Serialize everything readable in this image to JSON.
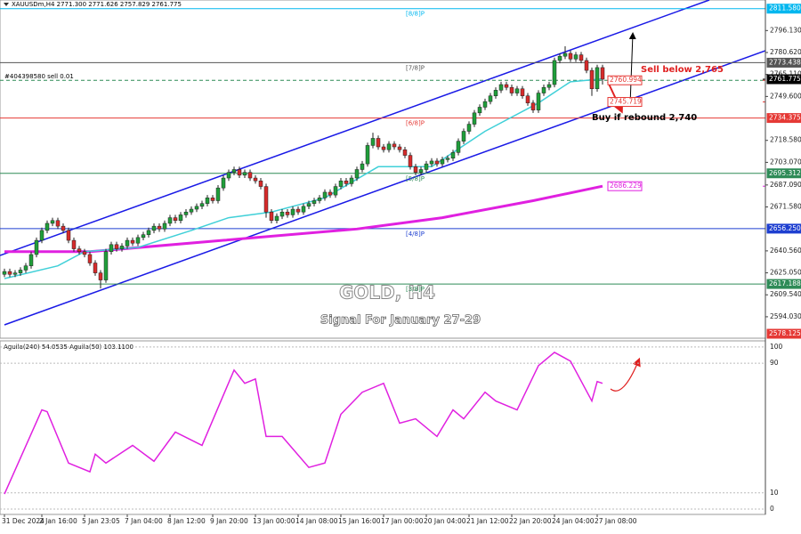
{
  "chart_data": {
    "type": "candlestick",
    "header": "XAUUSDm,H4  2771.300 2771.626 2757.829 2761.775",
    "order_label": "#404398580 sell 0.01",
    "order_price": 2760.994,
    "title": "GOLD, H4",
    "subtitle": "Signal For January 27-29",
    "annotations": [
      "Sell below 2,765",
      "Buy if rebound 2,740"
    ],
    "bull_color": "#1f9e3a",
    "bear_color": "#d62b2b",
    "ylim": [
      2578.9,
      2817.7
    ],
    "yticks": [
      {
        "value": 2796.13,
        "label": "2796.130"
      },
      {
        "value": 2780.62,
        "label": "2780.620"
      },
      {
        "value": 2765.11,
        "label": "2765.110"
      },
      {
        "value": 2749.6,
        "label": "2749.600"
      },
      {
        "value": 2718.58,
        "label": "2718.580"
      },
      {
        "value": 2703.07,
        "label": "2703.070"
      },
      {
        "value": 2687.09,
        "label": "2687.090"
      },
      {
        "value": 2671.58,
        "label": "2671.580"
      },
      {
        "value": 2640.56,
        "label": "2640.560"
      },
      {
        "value": 2625.05,
        "label": "2625.050"
      },
      {
        "value": 2609.54,
        "label": "2609.540"
      },
      {
        "value": 2594.03,
        "label": "2594.030"
      }
    ],
    "xticks": [
      {
        "value": 0,
        "label": "31 Dec 2024"
      },
      {
        "value": 7,
        "label": "2 Jan 16:00"
      },
      {
        "value": 15,
        "label": "5 Jan 23:05"
      },
      {
        "value": 23,
        "label": "7 Jan 04:00"
      },
      {
        "value": 31,
        "label": "8 Jan 12:00"
      },
      {
        "value": 39,
        "label": "9 Jan 20:00"
      },
      {
        "value": 47,
        "label": "13 Jan 00:00"
      },
      {
        "value": 55,
        "label": "14 Jan 08:00"
      },
      {
        "value": 63,
        "label": "15 Jan 16:00"
      },
      {
        "value": 71,
        "label": "17 Jan 00:00"
      },
      {
        "value": 79,
        "label": "20 Jan 04:00"
      },
      {
        "value": 87,
        "label": "21 Jan 12:00"
      },
      {
        "value": 95,
        "label": "22 Jan 20:00"
      },
      {
        "value": 103,
        "label": "24 Jan 04:00"
      },
      {
        "value": 111,
        "label": "27 Jan 08:00"
      }
    ],
    "levels": [
      {
        "name": "[8/8]P",
        "value": 2811.58,
        "label": "2811.580",
        "color": "#00b7ef"
      },
      {
        "name": "[7/8]P",
        "value": 2773.438,
        "label": "2773.438",
        "color": "#555555"
      },
      {
        "name": "[6/8]P",
        "value": 2734.375,
        "label": "2734.375",
        "color": "#e53935"
      },
      {
        "name": "[5/8]P",
        "value": 2695.312,
        "label": "2695.312",
        "color": "#2e8b57"
      },
      {
        "name": "[4/8]P",
        "value": 2656.25,
        "label": "2656.250",
        "color": "#1e3fd0"
      },
      {
        "name": "[3/8]P",
        "value": 2617.188,
        "label": "2617.188",
        "color": "#2e8b57"
      },
      {
        "value": 2578.125,
        "label": "2578.125",
        "color": "#e53935"
      }
    ],
    "price_tags": [
      {
        "value": 2761.775,
        "label": "2761.775",
        "color": "#000000",
        "placement": "axis"
      },
      {
        "value": 2760.994,
        "label": "2760.994",
        "color": "#e53935",
        "placement": "inline"
      },
      {
        "value": 2745.719,
        "label": "2745.719",
        "color": "#e53935",
        "placement": "inline"
      },
      {
        "value": 2686.229,
        "label": "2686.229",
        "color": "#e020e0",
        "placement": "inline"
      }
    ],
    "ma_fast": {
      "color": "#40d0d8",
      "x": [
        0,
        10,
        15,
        25,
        35,
        42,
        50,
        60,
        70,
        80,
        90,
        100,
        106,
        112
      ],
      "values": [
        2621,
        2630,
        2640,
        2643,
        2655,
        2664,
        2668,
        2678,
        2700,
        2700,
        2725,
        2745,
        2760,
        2762
      ]
    },
    "ma_slow": {
      "color": "#e020e0",
      "x": [
        0,
        16,
        41,
        66,
        82,
        99,
        112
      ],
      "values": [
        2640,
        2640,
        2648,
        2656,
        2664,
        2676,
        2686.229
      ]
    },
    "candles": [
      [
        2624,
        2628,
        2622,
        2626
      ],
      [
        2626,
        2628,
        2622,
        2624
      ],
      [
        2624,
        2627,
        2622,
        2625
      ],
      [
        2625,
        2629,
        2623,
        2627
      ],
      [
        2627,
        2632,
        2625,
        2630
      ],
      [
        2630,
        2640,
        2628,
        2638
      ],
      [
        2638,
        2650,
        2636,
        2648
      ],
      [
        2648,
        2657,
        2646,
        2655
      ],
      [
        2655,
        2662,
        2653,
        2660
      ],
      [
        2660,
        2664,
        2658,
        2662
      ],
      [
        2662,
        2664,
        2656,
        2658
      ],
      [
        2658,
        2660,
        2653,
        2655
      ],
      [
        2655,
        2657,
        2646,
        2648
      ],
      [
        2648,
        2650,
        2640,
        2642
      ],
      [
        2642,
        2644,
        2638,
        2640
      ],
      [
        2640,
        2642,
        2636,
        2638
      ],
      [
        2638,
        2640,
        2630,
        2632
      ],
      [
        2632,
        2634,
        2623,
        2625
      ],
      [
        2625,
        2627,
        2614,
        2620
      ],
      [
        2620,
        2642,
        2618,
        2640
      ],
      [
        2640,
        2647,
        2638,
        2645
      ],
      [
        2645,
        2647,
        2640,
        2642
      ],
      [
        2642,
        2646,
        2640,
        2644
      ],
      [
        2644,
        2650,
        2642,
        2648
      ],
      [
        2648,
        2650,
        2644,
        2646
      ],
      [
        2646,
        2652,
        2644,
        2650
      ],
      [
        2650,
        2654,
        2648,
        2652
      ],
      [
        2652,
        2657,
        2650,
        2655
      ],
      [
        2655,
        2660,
        2653,
        2658
      ],
      [
        2658,
        2660,
        2654,
        2656
      ],
      [
        2656,
        2662,
        2654,
        2660
      ],
      [
        2660,
        2666,
        2658,
        2664
      ],
      [
        2664,
        2666,
        2660,
        2662
      ],
      [
        2662,
        2668,
        2660,
        2666
      ],
      [
        2666,
        2670,
        2664,
        2668
      ],
      [
        2668,
        2672,
        2666,
        2670
      ],
      [
        2670,
        2674,
        2668,
        2672
      ],
      [
        2672,
        2676,
        2670,
        2674
      ],
      [
        2674,
        2680,
        2672,
        2678
      ],
      [
        2678,
        2680,
        2674,
        2676
      ],
      [
        2676,
        2687,
        2674,
        2685
      ],
      [
        2685,
        2694,
        2683,
        2692
      ],
      [
        2692,
        2698,
        2690,
        2696
      ],
      [
        2696,
        2700,
        2694,
        2698
      ],
      [
        2698,
        2700,
        2692,
        2694
      ],
      [
        2694,
        2698,
        2692,
        2696
      ],
      [
        2696,
        2698,
        2690,
        2692
      ],
      [
        2692,
        2694,
        2688,
        2690
      ],
      [
        2690,
        2692,
        2684,
        2686
      ],
      [
        2686,
        2688,
        2664,
        2668
      ],
      [
        2668,
        2670,
        2660,
        2662
      ],
      [
        2662,
        2667,
        2660,
        2665
      ],
      [
        2665,
        2670,
        2663,
        2668
      ],
      [
        2668,
        2670,
        2664,
        2666
      ],
      [
        2666,
        2672,
        2664,
        2670
      ],
      [
        2670,
        2672,
        2666,
        2668
      ],
      [
        2668,
        2674,
        2666,
        2672
      ],
      [
        2672,
        2676,
        2670,
        2674
      ],
      [
        2674,
        2678,
        2672,
        2676
      ],
      [
        2676,
        2680,
        2674,
        2678
      ],
      [
        2678,
        2684,
        2676,
        2682
      ],
      [
        2682,
        2684,
        2678,
        2680
      ],
      [
        2680,
        2688,
        2678,
        2686
      ],
      [
        2686,
        2692,
        2684,
        2690
      ],
      [
        2690,
        2692,
        2686,
        2688
      ],
      [
        2688,
        2694,
        2686,
        2692
      ],
      [
        2692,
        2700,
        2690,
        2698
      ],
      [
        2698,
        2704,
        2696,
        2702
      ],
      [
        2702,
        2717,
        2700,
        2715
      ],
      [
        2715,
        2724,
        2713,
        2720
      ],
      [
        2720,
        2722,
        2712,
        2714
      ],
      [
        2714,
        2716,
        2710,
        2712
      ],
      [
        2712,
        2718,
        2710,
        2716
      ],
      [
        2716,
        2718,
        2712,
        2714
      ],
      [
        2714,
        2716,
        2710,
        2712
      ],
      [
        2712,
        2714,
        2706,
        2708
      ],
      [
        2708,
        2710,
        2698,
        2700
      ],
      [
        2700,
        2702,
        2694,
        2696
      ],
      [
        2696,
        2700,
        2694,
        2698
      ],
      [
        2698,
        2704,
        2696,
        2702
      ],
      [
        2702,
        2706,
        2700,
        2704
      ],
      [
        2704,
        2706,
        2700,
        2702
      ],
      [
        2702,
        2707,
        2700,
        2705
      ],
      [
        2705,
        2708,
        2703,
        2706
      ],
      [
        2706,
        2712,
        2704,
        2710
      ],
      [
        2710,
        2720,
        2708,
        2718
      ],
      [
        2718,
        2727,
        2716,
        2725
      ],
      [
        2725,
        2732,
        2723,
        2730
      ],
      [
        2730,
        2740,
        2728,
        2738
      ],
      [
        2738,
        2744,
        2736,
        2742
      ],
      [
        2742,
        2748,
        2740,
        2746
      ],
      [
        2746,
        2752,
        2744,
        2750
      ],
      [
        2750,
        2756,
        2748,
        2754
      ],
      [
        2754,
        2760,
        2752,
        2758
      ],
      [
        2758,
        2760,
        2754,
        2756
      ],
      [
        2756,
        2758,
        2750,
        2752
      ],
      [
        2752,
        2757,
        2750,
        2755
      ],
      [
        2755,
        2757,
        2748,
        2750
      ],
      [
        2750,
        2752,
        2743,
        2745
      ],
      [
        2745,
        2747,
        2738,
        2740
      ],
      [
        2740,
        2754,
        2738,
        2752
      ],
      [
        2752,
        2758,
        2750,
        2756
      ],
      [
        2756,
        2760,
        2754,
        2758
      ],
      [
        2758,
        2777,
        2756,
        2775
      ],
      [
        2775,
        2780,
        2773,
        2778
      ],
      [
        2778,
        2785,
        2776,
        2780
      ],
      [
        2780,
        2782,
        2774,
        2776
      ],
      [
        2776,
        2781,
        2774,
        2779
      ],
      [
        2779,
        2781,
        2773,
        2775
      ],
      [
        2775,
        2777,
        2766,
        2768
      ],
      [
        2768,
        2770,
        2750,
        2755
      ],
      [
        2755,
        2772,
        2753,
        2770
      ],
      [
        2770,
        2772,
        2758,
        2761.775
      ]
    ],
    "indicator": {
      "title": "Aguila(240) 54.0535  Aguila(50) 103.1100",
      "color": "#e020e0",
      "ylim": [
        -3.3,
        103.8
      ],
      "yticks": [
        0,
        10,
        90,
        100
      ],
      "x": [
        0,
        7,
        8,
        12,
        16,
        17,
        19,
        24,
        28,
        32,
        37,
        43,
        45,
        47,
        49,
        52,
        57,
        60,
        63,
        67,
        71,
        74,
        77,
        81,
        84,
        86,
        90,
        92,
        96,
        100,
        103,
        106,
        110,
        111,
        112
      ],
      "values": [
        9.3,
        61.2,
        60.1,
        28.4,
        23,
        33.9,
        28.4,
        39.3,
        29.5,
        47.5,
        39.3,
        85.8,
        77.6,
        80.3,
        44.8,
        44.8,
        25.7,
        28.4,
        58.5,
        72.1,
        77.6,
        53,
        55.7,
        44.8,
        61.2,
        55.7,
        72.1,
        66.7,
        61.2,
        88.5,
        96.7,
        91.3,
        66.7,
        78.7,
        77.6
      ]
    }
  }
}
